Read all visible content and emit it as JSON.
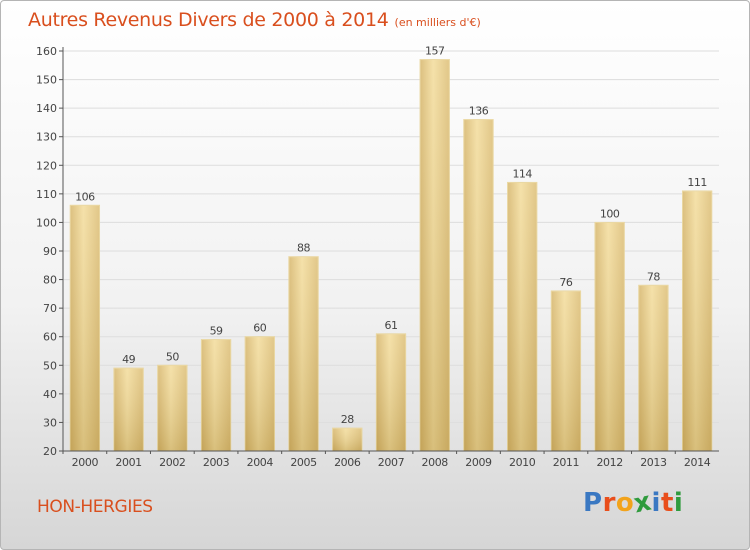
{
  "chart_data": {
    "type": "bar",
    "title": "Autres Revenus Divers de 2000 à 2014",
    "subtitle": "(en milliers d'€)",
    "categories": [
      "2000",
      "2001",
      "2002",
      "2003",
      "2004",
      "2005",
      "2006",
      "2007",
      "2008",
      "2009",
      "2010",
      "2011",
      "2012",
      "2013",
      "2014"
    ],
    "values": [
      106,
      49,
      50,
      59,
      60,
      88,
      28,
      61,
      157,
      136,
      114,
      76,
      100,
      78,
      111
    ],
    "ylim": [
      20,
      160
    ],
    "yticks": [
      20,
      30,
      40,
      50,
      60,
      70,
      80,
      90,
      100,
      110,
      120,
      130,
      140,
      150,
      160
    ],
    "grid": true,
    "bar_color": "#e7c97e"
  },
  "footer": {
    "place": "HON-HERGIES",
    "logo_letters": [
      {
        "char": "P",
        "color": "#3a78c2"
      },
      {
        "char": "r",
        "color": "#e94e1b"
      },
      {
        "char": "o",
        "color": "#f2a31b"
      },
      {
        "char": "x",
        "color": "#2f9b3d"
      },
      {
        "char": "i",
        "color": "#3a78c2"
      },
      {
        "char": "t",
        "color": "#e94e1b"
      },
      {
        "char": "i",
        "color": "#2f9b3d"
      }
    ]
  }
}
